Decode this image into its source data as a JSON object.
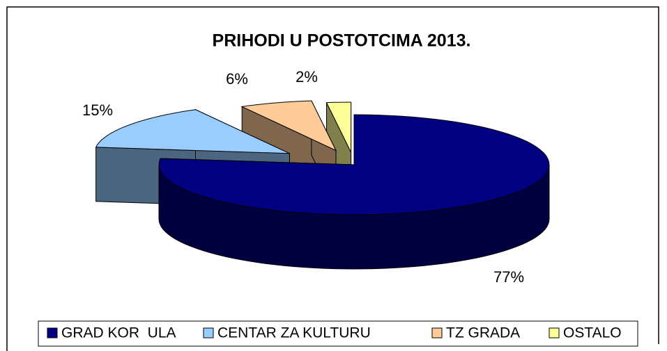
{
  "chart_data": {
    "type": "pie",
    "title": "PRIHODI U POSTOTCIMA 2013.",
    "categories": [
      "GRAD KOR  ULA",
      "CENTAR ZA KULTURU",
      "TZ GRADA",
      "OSTALO"
    ],
    "values": [
      77,
      15,
      6,
      2
    ],
    "value_labels": [
      "77%",
      "15%",
      "6%",
      "2%"
    ],
    "colors": [
      "#000080",
      "#99ccff",
      "#ffcc99",
      "#ffff99"
    ],
    "legend": "bottom"
  }
}
